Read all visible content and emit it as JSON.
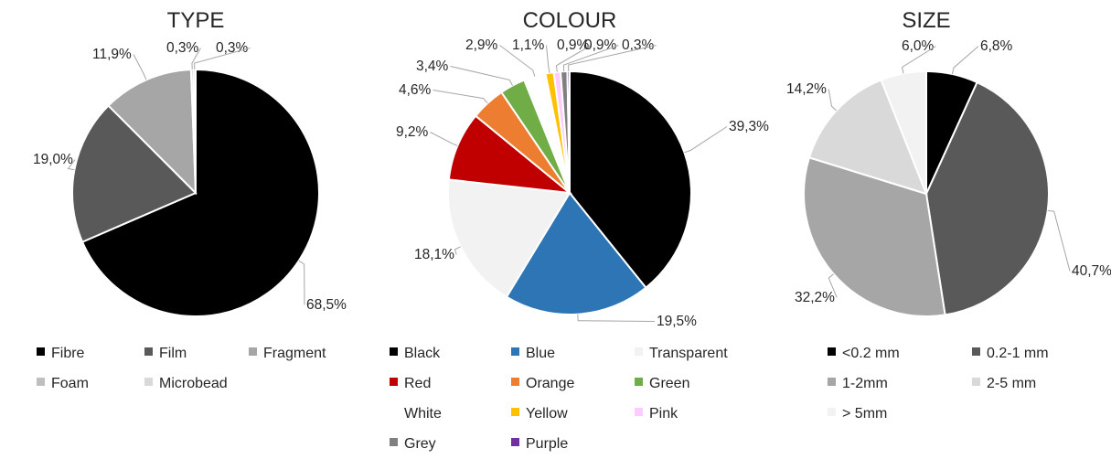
{
  "chart_data": [
    {
      "type": "pie",
      "title": "TYPE",
      "legend_position": "bottom",
      "slices": [
        {
          "label": "Fibre",
          "value": 68.5,
          "value_label": "68,5%",
          "color": "#000000"
        },
        {
          "label": "Film",
          "value": 19.0,
          "value_label": "19,0%",
          "color": "#595959"
        },
        {
          "label": "Fragment",
          "value": 11.9,
          "value_label": "11,9%",
          "color": "#a6a6a6"
        },
        {
          "label": "Foam",
          "value": 0.3,
          "value_label": "0,3%",
          "color": "#bfbfbf"
        },
        {
          "label": "Microbead",
          "value": 0.3,
          "value_label": "0,3%",
          "color": "#d9d9d9"
        }
      ]
    },
    {
      "type": "pie",
      "title": "COLOUR",
      "legend_position": "bottom",
      "slices": [
        {
          "label": "Black",
          "value": 39.3,
          "value_label": "39,3%",
          "color": "#000000"
        },
        {
          "label": "Blue",
          "value": 19.5,
          "value_label": "19,5%",
          "color": "#2e75b6"
        },
        {
          "label": "Transparent",
          "value": 18.1,
          "value_label": "18,1%",
          "color": "#f2f2f2"
        },
        {
          "label": "Red",
          "value": 9.2,
          "value_label": "9,2%",
          "color": "#c00000"
        },
        {
          "label": "Orange",
          "value": 4.6,
          "value_label": "4,6%",
          "color": "#ed7d31"
        },
        {
          "label": "Green",
          "value": 3.4,
          "value_label": "3,4%",
          "color": "#70ad47"
        },
        {
          "label": "White",
          "value": 2.9,
          "value_label": "2,9%",
          "color": "#ffffff"
        },
        {
          "label": "Yellow",
          "value": 1.1,
          "value_label": "1,1%",
          "color": "#ffc000"
        },
        {
          "label": "Pink",
          "value": 0.9,
          "value_label": "0,9%",
          "color": "#ffccff"
        },
        {
          "label": "Grey",
          "value": 0.9,
          "value_label": "0,9%",
          "color": "#808080"
        },
        {
          "label": "Purple",
          "value": 0.3,
          "value_label": "0,3%",
          "color": "#7030a0"
        }
      ]
    },
    {
      "type": "pie",
      "title": "SIZE",
      "legend_position": "bottom",
      "slices": [
        {
          "label": "<0.2 mm",
          "value": 6.8,
          "value_label": "6,8%",
          "color": "#000000"
        },
        {
          "label": "0.2-1 mm",
          "value": 40.7,
          "value_label": "40,7%",
          "color": "#595959"
        },
        {
          "label": "1-2mm",
          "value": 32.2,
          "value_label": "32,2%",
          "color": "#a6a6a6"
        },
        {
          "label": "2-5 mm",
          "value": 14.2,
          "value_label": "14,2%",
          "color": "#d9d9d9"
        },
        {
          "label": "> 5mm",
          "value": 6.0,
          "value_label": "6,0%",
          "color": "#f2f2f2"
        }
      ]
    }
  ]
}
